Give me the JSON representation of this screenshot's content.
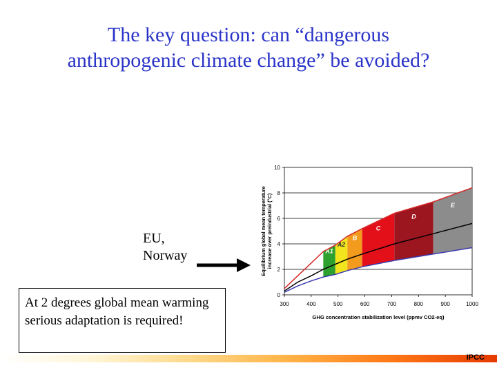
{
  "title": {
    "line1": "The key question: can “dangerous",
    "line2": "anthropogenic climate change” be avoided?"
  },
  "annotation": {
    "line1": "EU,",
    "line2": "Norway"
  },
  "note": "At 2 degrees global mean warming serious adaptation is required!",
  "source": "IPCC",
  "colors": {
    "title": "#2b34c8",
    "upper_curve": "#d62828",
    "central_curve": "#000000",
    "lower_curve": "#3a3ab0",
    "band_A1": "#2ea02e",
    "band_A2": "#f2e51e",
    "band_B": "#f39b1c",
    "band_C": "#e3101a",
    "band_D": "#9c1620",
    "band_E": "#8c8c8c"
  },
  "chart_data": {
    "type": "area",
    "xlabel": "GHG concentration stabilization level (ppmv CO2-eq)",
    "ylabel_line1": "Equilibrium global mean temperature",
    "ylabel_line2": "increase over preindustrial (°C)",
    "xlim": [
      300,
      1000
    ],
    "ylim": [
      0,
      10
    ],
    "x_ticks": [
      "300",
      "400",
      "500",
      "600",
      "700",
      "800",
      "900",
      "1000"
    ],
    "y_ticks": [
      "0",
      "2",
      "4",
      "6",
      "8",
      "10"
    ],
    "grid": "horizontal",
    "x": [
      300,
      350,
      400,
      445,
      490,
      535,
      590,
      710,
      855,
      1000
    ],
    "series": [
      {
        "key": "upper",
        "values": [
          0.5,
          1.5,
          2.5,
          3.4,
          3.9,
          4.6,
          5.2,
          6.4,
          7.3,
          8.4
        ]
      },
      {
        "key": "central",
        "values": [
          0.3,
          1.0,
          1.5,
          2.0,
          2.4,
          2.8,
          3.2,
          4.0,
          4.8,
          5.6
        ]
      },
      {
        "key": "lower",
        "values": [
          0.2,
          0.7,
          1.1,
          1.4,
          1.6,
          1.9,
          2.2,
          2.7,
          3.2,
          3.7
        ]
      }
    ],
    "bands": [
      {
        "label": "A1",
        "from": 445,
        "to": 490,
        "color_key": "band_A1"
      },
      {
        "label": "A2",
        "from": 490,
        "to": 535,
        "color_key": "band_A2"
      },
      {
        "label": "B",
        "from": 535,
        "to": 590,
        "color_key": "band_B"
      },
      {
        "label": "C",
        "from": 590,
        "to": 710,
        "color_key": "band_C"
      },
      {
        "label": "D",
        "from": 710,
        "to": 855,
        "color_key": "band_D"
      },
      {
        "label": "E",
        "from": 855,
        "to": 1000,
        "color_key": "band_E"
      }
    ]
  }
}
